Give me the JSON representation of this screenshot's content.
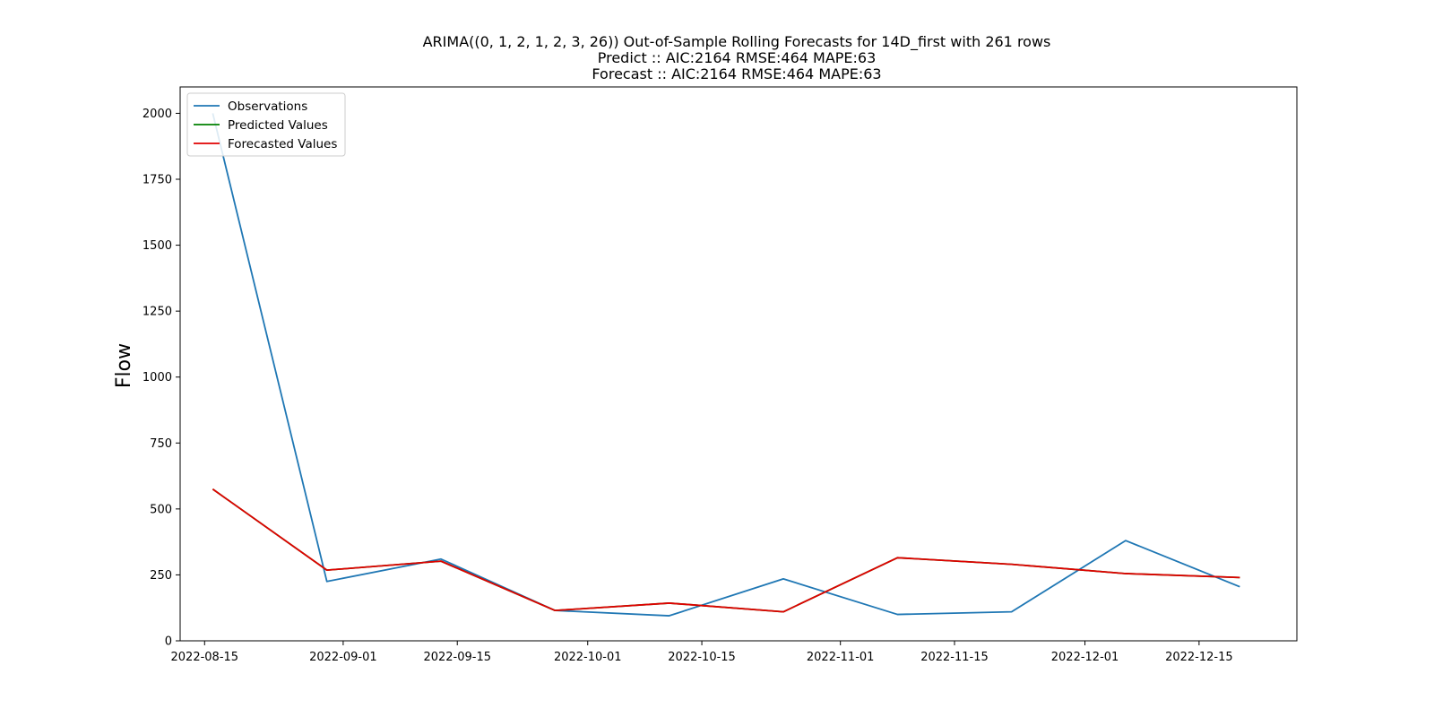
{
  "chart_data": {
    "type": "line",
    "title_lines": [
      "ARIMA((0, 1, 2, 1, 2, 3, 26)) Out-of-Sample Rolling Forecasts for 14D_first with 261 rows",
      "Predict :: AIC:2164 RMSE:464 MAPE:63",
      "Forecast :: AIC:2164 RMSE:464 MAPE:63"
    ],
    "xlabel": "",
    "ylabel": "Flow",
    "xlim": [
      "2022-08-12",
      "2022-12-27"
    ],
    "ylim": [
      0,
      2100
    ],
    "x_ticks": [
      "2022-08-15",
      "2022-09-01",
      "2022-09-15",
      "2022-10-01",
      "2022-10-15",
      "2022-11-01",
      "2022-11-15",
      "2022-12-01",
      "2022-12-15"
    ],
    "y_ticks": [
      0,
      250,
      500,
      750,
      1000,
      1250,
      1500,
      1750,
      2000
    ],
    "grid": false,
    "legend_position": "upper-left",
    "series": [
      {
        "name": "Observations",
        "color": "#1f77b4",
        "x": [
          "2022-08-16",
          "2022-08-30",
          "2022-09-13",
          "2022-09-27",
          "2022-10-11",
          "2022-10-25",
          "2022-11-08",
          "2022-11-22",
          "2022-12-06",
          "2022-12-20"
        ],
        "values": [
          2000,
          225,
          310,
          115,
          95,
          235,
          100,
          110,
          380,
          205
        ]
      },
      {
        "name": "Predicted Values",
        "color": "#008000",
        "x": [
          "2022-08-16",
          "2022-08-30",
          "2022-09-13",
          "2022-09-27",
          "2022-10-11",
          "2022-10-25",
          "2022-11-08",
          "2022-11-22",
          "2022-12-06",
          "2022-12-20"
        ],
        "values": [
          575,
          268,
          302,
          115,
          143,
          110,
          315,
          290,
          255,
          240
        ]
      },
      {
        "name": "Forecasted Values",
        "color": "#e00000",
        "x": [
          "2022-08-16",
          "2022-08-30",
          "2022-09-13",
          "2022-09-27",
          "2022-10-11",
          "2022-10-25",
          "2022-11-08",
          "2022-11-22",
          "2022-12-06",
          "2022-12-20"
        ],
        "values": [
          575,
          268,
          302,
          115,
          143,
          110,
          315,
          290,
          255,
          240
        ]
      }
    ]
  }
}
